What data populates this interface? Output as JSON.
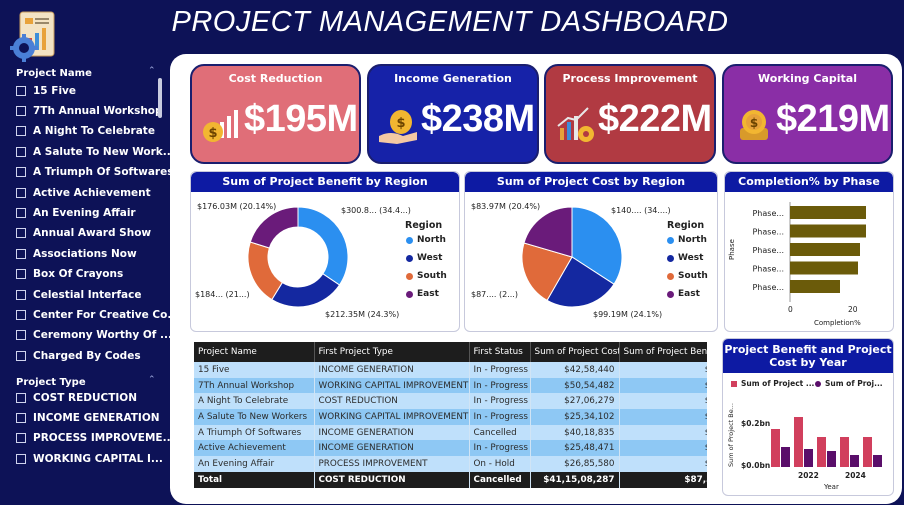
{
  "title": "PROJECT MANAGEMENT DASHBOARD",
  "sidebar": {
    "project_name_header": "Project Name",
    "project_names": [
      "15 Five",
      "7Th Annual Workshop",
      "A Night To Celebrate",
      "A Salute To New Work...",
      "A Triumph Of Softwares",
      "Active Achievement",
      "An Evening Affair",
      "Annual Award Show",
      "Associations Now",
      "Box Of Crayons",
      "Celestial Interface",
      "Center For Creative Co...",
      "Ceremony Worthy Of ...",
      "Charged By Codes"
    ],
    "project_type_header": "Project Type",
    "project_types": [
      "COST REDUCTION",
      "INCOME GENERATION",
      "PROCESS IMPROVEME...",
      "WORKING CAPITAL I..."
    ]
  },
  "kpis": [
    {
      "label": "Cost Reduction",
      "value": "$195M",
      "color": "#e06e78",
      "icon": "money-bag-chart-icon"
    },
    {
      "label": "Income Generation",
      "value": "$238M",
      "color": "#1622a8",
      "icon": "hand-money-bag-icon"
    },
    {
      "label": "Process Improvement",
      "value": "$222M",
      "color": "#b13a42",
      "icon": "growth-chart-gear-icon"
    },
    {
      "label": "Working Capital",
      "value": "$219M",
      "color": "#8a2ea6",
      "icon": "coin-stack-icon"
    }
  ],
  "benefit_chart": {
    "title": "Sum of Project Benefit by Region",
    "legend_title": "Region",
    "labels": {
      "tl": "$176.03M (20.14%)",
      "tr": "$300.8... (34.4...)",
      "bl": "$184... (21...)",
      "br": "$212.35M (24.3%)"
    }
  },
  "cost_chart": {
    "title": "Sum of Project Cost by Region",
    "legend_title": "Region",
    "labels": {
      "tl": "$83.97M (20.4%)",
      "tr": "$140.... (34....)",
      "bl": "$87.... (2...)",
      "br": "$99.19M (24.1%)"
    }
  },
  "completion_chart": {
    "title": "Completion% by Phase",
    "ylabel": "Phase",
    "xlabel": "Completion%",
    "ticks": [
      "0",
      "20"
    ]
  },
  "year_chart": {
    "title": "Project Benefit and Project Cost by Year",
    "ylabel": "Sum of Project Be...",
    "xlabel": "Year",
    "yticks": [
      "$0.2bn",
      "$0.0bn"
    ],
    "xticks": [
      "2022",
      "2024"
    ],
    "legend": [
      "Sum of Project ...",
      "Sum of Proj..."
    ]
  },
  "table": {
    "headers": [
      "Project Name",
      "First Project Type",
      "First Status",
      "Sum of Project Cost",
      "Sum of Project Benefit"
    ],
    "rows": [
      [
        "15 Five",
        "INCOME GENERATION",
        "In - Progress",
        "$42,58,440",
        "$85,77,44"
      ],
      [
        "7Th Annual Workshop",
        "WORKING CAPITAL IMPROVEMENT",
        "In - Progress",
        "$50,54,482",
        "$84,22,57"
      ],
      [
        "A Night To Celebrate",
        "COST REDUCTION",
        "In - Progress",
        "$27,06,279",
        "$85,47,18"
      ],
      [
        "A Salute To New Workers",
        "WORKING CAPITAL IMPROVEMENT",
        "In - Progress",
        "$25,34,102",
        "$90,72,53"
      ],
      [
        "A Triumph Of Softwares",
        "INCOME GENERATION",
        "Cancelled",
        "$40,18,835",
        "$90,12,22"
      ],
      [
        "Active Achievement",
        "INCOME GENERATION",
        "In - Progress",
        "$25,48,471",
        "$90,25,60"
      ],
      [
        "An Evening Affair",
        "PROCESS IMPROVEMENT",
        "On - Hold",
        "$26,85,580",
        "$88,09,20"
      ]
    ],
    "total": [
      "Total",
      "COST REDUCTION",
      "Cancelled",
      "$41,15,08,287",
      "$87,39,89,63"
    ]
  },
  "chart_data": [
    {
      "type": "pie",
      "title": "Sum of Project Benefit by Region",
      "categories": [
        "North",
        "West",
        "South",
        "East"
      ],
      "values": [
        300.8,
        212.35,
        184,
        176.03
      ],
      "units": "$M",
      "colors": [
        "#2b8ff0",
        "#1428a0",
        "#e06a3a",
        "#6a1b7a"
      ],
      "donut": true
    },
    {
      "type": "pie",
      "title": "Sum of Project Cost by Region",
      "categories": [
        "North",
        "West",
        "South",
        "East"
      ],
      "values": [
        140,
        99.19,
        87,
        83.97
      ],
      "units": "$M",
      "colors": [
        "#2b8ff0",
        "#1428a0",
        "#e06a3a",
        "#6a1b7a"
      ],
      "donut": false
    },
    {
      "type": "bar",
      "orientation": "horizontal",
      "title": "Completion% by Phase",
      "categories": [
        "Phase...",
        "Phase...",
        "Phase...",
        "Phase...",
        "Phase..."
      ],
      "values": [
        19,
        19,
        17.5,
        17,
        12.5
      ],
      "xlim": [
        0,
        25
      ],
      "color": "#6b5b0a"
    },
    {
      "type": "bar",
      "title": "Project Benefit and Project Cost by Year",
      "categories": [
        "2021",
        "2022",
        "2023",
        "2024",
        "2025"
      ],
      "series": [
        {
          "name": "Sum of Project Benefit",
          "values": [
            0.19,
            0.25,
            0.15,
            0.15,
            0.15
          ],
          "color": "#d13f5d"
        },
        {
          "name": "Sum of Project Cost",
          "values": [
            0.1,
            0.09,
            0.08,
            0.06,
            0.06
          ],
          "color": "#5a0e6a"
        }
      ],
      "ylim": [
        0,
        0.3
      ],
      "units": "bn"
    }
  ]
}
